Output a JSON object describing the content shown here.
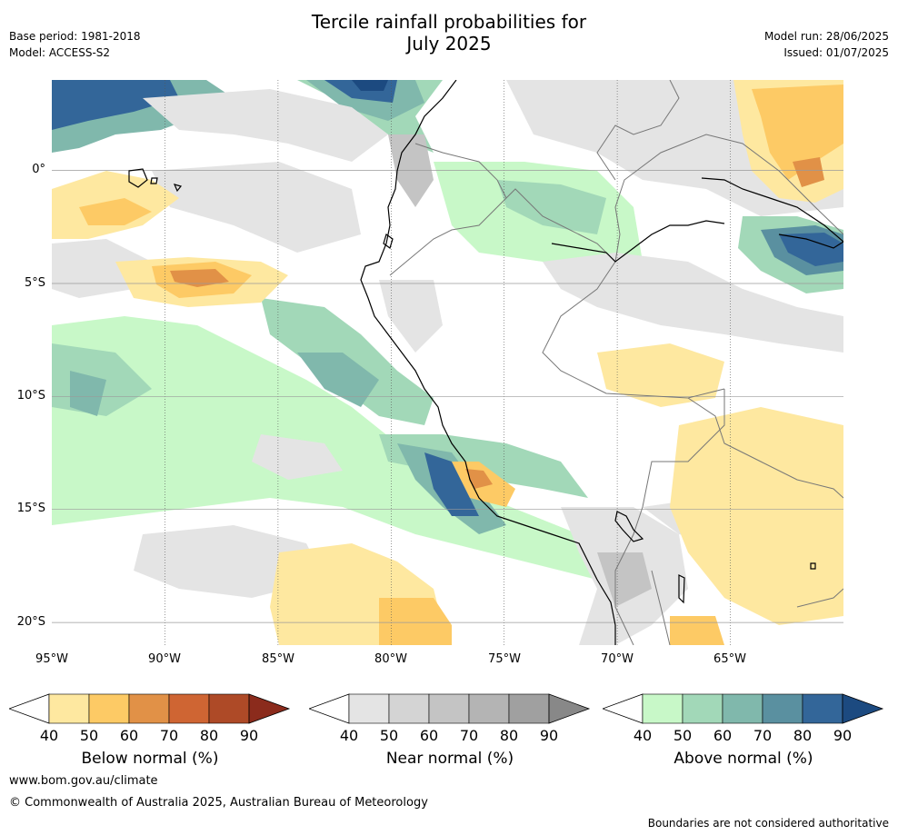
{
  "header": {
    "title_line1": "Tercile rainfall probabilities for",
    "title_line2": "July 2025",
    "base_period": "Base period: 1981-2018",
    "model": "Model: ACCESS-S2",
    "model_run": "Model run: 28/06/2025",
    "issued": "Issued: 01/07/2025"
  },
  "map": {
    "lat_labels": [
      "0°",
      "5°S",
      "10°S",
      "15°S",
      "20°S"
    ],
    "lon_labels": [
      "95°W",
      "90°W",
      "85°W",
      "80°W",
      "75°W",
      "70°W",
      "65°W"
    ],
    "lat_range": [
      -21,
      4
    ],
    "lon_range": [
      -95,
      -60
    ]
  },
  "legends": [
    {
      "title": "Below normal (%)",
      "ticks": [
        "40",
        "50",
        "60",
        "70",
        "80",
        "90"
      ],
      "colors": [
        "#ffffff",
        "#fee8a0",
        "#fdca65",
        "#e19147",
        "#cf6533",
        "#ae4a27",
        "#8b2b1c"
      ]
    },
    {
      "title": "Near normal (%)",
      "ticks": [
        "40",
        "50",
        "60",
        "70",
        "80",
        "90"
      ],
      "colors": [
        "#ffffff",
        "#e4e4e4",
        "#d4d4d4",
        "#c4c4c4",
        "#b4b4b4",
        "#a0a0a0",
        "#888888"
      ]
    },
    {
      "title": "Above normal (%)",
      "ticks": [
        "40",
        "50",
        "60",
        "70",
        "80",
        "90"
      ],
      "colors": [
        "#ffffff",
        "#c8f8c8",
        "#a2d8b8",
        "#80b8ac",
        "#5a90a0",
        "#336699",
        "#1c4a80"
      ]
    }
  ],
  "footer": {
    "website": "www.bom.gov.au/climate",
    "copyright": "© Commonwealth of Australia 2025, Australian Bureau of Meteorology",
    "disclaimer": "Boundaries are not considered authoritative"
  }
}
